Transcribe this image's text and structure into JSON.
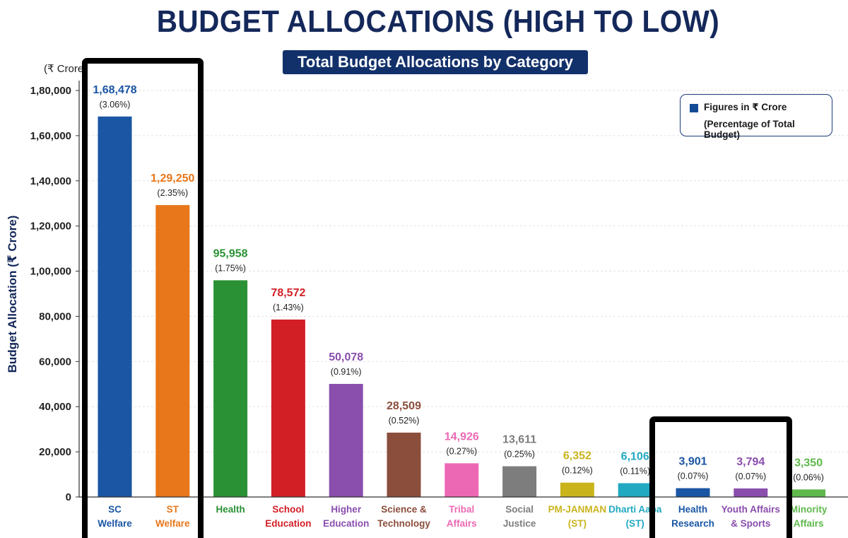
{
  "page": {
    "title": "BUDGET ALLOCATIONS (HIGH TO LOW)",
    "subtitle": "Total Budget Allocations by Category",
    "unit_label": "(₹ Crore)"
  },
  "legend": {
    "line1": "Figures in ₹ Crore",
    "line2": "(Percentage of Total Budget)",
    "swatch_color": "#144b96"
  },
  "chart_data": {
    "type": "bar",
    "title": "BUDGET ALLOCATIONS (HIGH TO LOW)",
    "subtitle": "Total Budget Allocations by Category",
    "xlabel": "",
    "ylabel": "Budget Allocation (₹ Crore)",
    "ylim": [
      0,
      180000
    ],
    "yticks": [
      0,
      20000,
      40000,
      60000,
      80000,
      100000,
      120000,
      140000,
      160000,
      180000
    ],
    "ytick_labels": [
      "0",
      "20,000",
      "40,000",
      "60,000",
      "80,000",
      "1,00,000",
      "1,20,000",
      "1,40,000",
      "1,60,000",
      "1,80,000"
    ],
    "grid": true,
    "legend_position": "top-right",
    "categories": [
      [
        "SC",
        "Welfare"
      ],
      [
        "ST",
        "Welfare"
      ],
      [
        "Health"
      ],
      [
        "School",
        "Education"
      ],
      [
        "Higher",
        "Education"
      ],
      [
        "Science &",
        "Technology"
      ],
      [
        "Tribal",
        "Affairs"
      ],
      [
        "Social",
        "Justice"
      ],
      [
        "PM-JANMAN",
        "(ST)"
      ],
      [
        "Dharti Aaba",
        "(ST)"
      ],
      [
        "Health",
        "Research"
      ],
      [
        "Youth Affairs",
        "& Sports"
      ],
      [
        "Minority",
        "Affairs"
      ]
    ],
    "values": [
      168478,
      129250,
      95958,
      78572,
      50078,
      28509,
      14926,
      13611,
      6352,
      6106,
      3901,
      3794,
      3350
    ],
    "value_labels": [
      "1,68,478",
      "1,29,250",
      "95,958",
      "78,572",
      "50,078",
      "28,509",
      "14,926",
      "13,611",
      "6,352",
      "6,106",
      "3,901",
      "3,794",
      "3,350"
    ],
    "percent_labels": [
      "(3.06%)",
      "(2.35%)",
      "(1.75%)",
      "(1.43%)",
      "(0.91%)",
      "(0.52%)",
      "(0.27%)",
      "(0.25%)",
      "(0.12%)",
      "(0.11%)",
      "(0.07%)",
      "(0.07%)",
      "(0.06%)"
    ],
    "colors": [
      "#1a56a4",
      "#e8761a",
      "#2a9134",
      "#d21f26",
      "#8a4ead",
      "#8b4e3c",
      "#ec68b4",
      "#7d7d7d",
      "#c9b41c",
      "#20a9c1",
      "#1a56a4",
      "#8a4ead",
      "#5fb84c"
    ],
    "highlight_groups": [
      [
        "SC",
        "ST"
      ],
      [
        "Health Research",
        "Youth Affairs & Sports"
      ]
    ]
  }
}
